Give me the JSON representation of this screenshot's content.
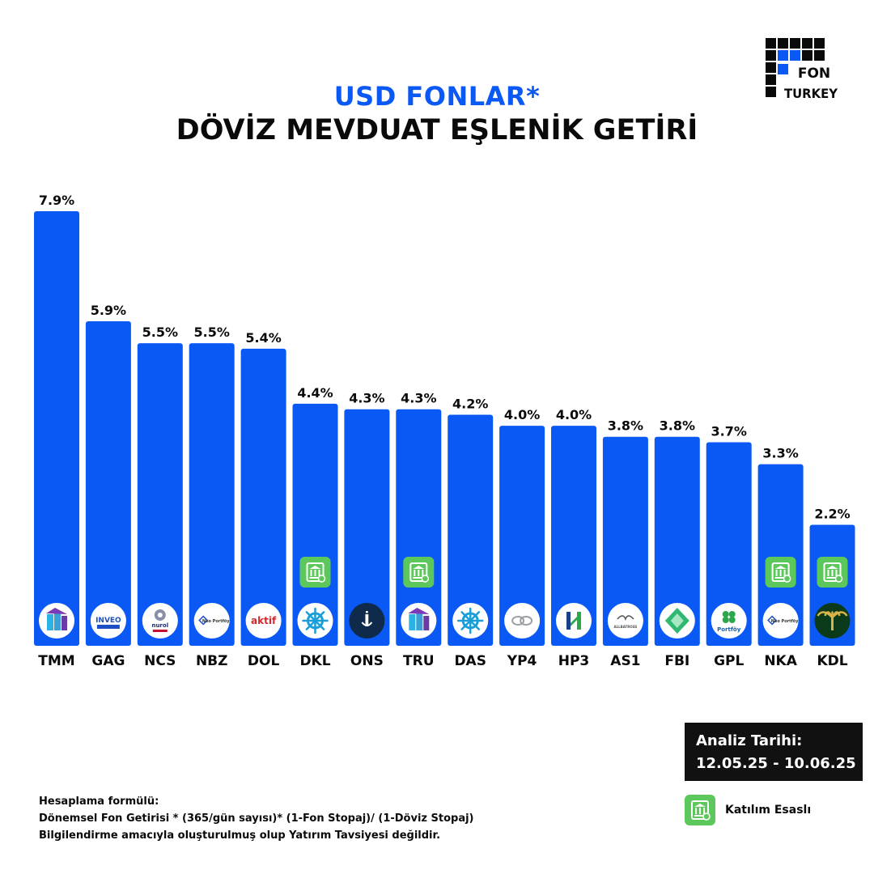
{
  "brand": {
    "logo_line1": "FON",
    "logo_line2": "TURKEY"
  },
  "title": {
    "line1": "USD FONLAR*",
    "line2": "DÖVİZ MEVDUAT EŞLENİK GETİRİ"
  },
  "colors": {
    "bar": "#0b59f5",
    "title_accent": "#0b59f5",
    "katilim_badge": "#5cc85c",
    "text": "#0a0a0a"
  },
  "chart_data": {
    "type": "bar",
    "title": "DÖVİZ MEVDUAT EŞLENİK GETİRİ",
    "xlabel": "",
    "ylabel": "",
    "value_unit": "%",
    "ylim": [
      0,
      7.9
    ],
    "grid": false,
    "categories": [
      "TMM",
      "GAG",
      "NCS",
      "NBZ",
      "DOL",
      "DKL",
      "ONS",
      "TRU",
      "DAS",
      "YP4",
      "HP3",
      "AS1",
      "FBI",
      "GPL",
      "NKA",
      "KDL"
    ],
    "values": [
      7.9,
      5.9,
      5.5,
      5.5,
      5.4,
      4.4,
      4.3,
      4.3,
      4.2,
      4.0,
      4.0,
      3.8,
      3.8,
      3.7,
      3.3,
      2.2
    ],
    "value_labels": [
      "7.9%",
      "5.9%",
      "5.5%",
      "5.5%",
      "5.4%",
      "4.4%",
      "4.3%",
      "4.3%",
      "4.2%",
      "4.0%",
      "4.0%",
      "3.8%",
      "3.8%",
      "3.7%",
      "3.3%",
      "2.2%"
    ],
    "katilim_esasli": [
      false,
      false,
      false,
      false,
      false,
      true,
      false,
      true,
      false,
      false,
      false,
      false,
      false,
      false,
      true,
      true
    ],
    "logos": [
      "tmm-logo",
      "inveo-portfoy-logo",
      "nurol-portfoy-logo",
      "neo-portfoy-logo",
      "aktif-logo",
      "ship-wheel-logo",
      "is-portfoy-logo",
      "tmm-logo",
      "ship-wheel-logo",
      "cloud-logo",
      "h-logo",
      "albatross-logo",
      "fbi-diamond-logo",
      "clover-portfoy-logo",
      "neo-portfoy-logo",
      "palm-logo"
    ],
    "logo_texts": [
      "",
      "INVEO",
      "nurol",
      "Neo Portföy",
      "aktif",
      "",
      "",
      "",
      "",
      "",
      "",
      "ALLBATROSS",
      "",
      "Portföy",
      "Neo Portföy",
      ""
    ]
  },
  "analysis": {
    "label": "Analiz Tarihi:",
    "range": "12.05.25 - 10.06.25"
  },
  "legend": {
    "label": "Katılım Esaslı",
    "icon": "katilim-bank-icon"
  },
  "footer": {
    "line1": "Hesaplama formülü:",
    "line2": "Dönemsel Fon Getirisi * (365/gün sayısı)* (1-Fon Stopaj)/ (1-Döviz Stopaj)",
    "line3": "Bilgilendirme amacıyla oluşturulmuş olup Yatırım Tavsiyesi değildir."
  }
}
